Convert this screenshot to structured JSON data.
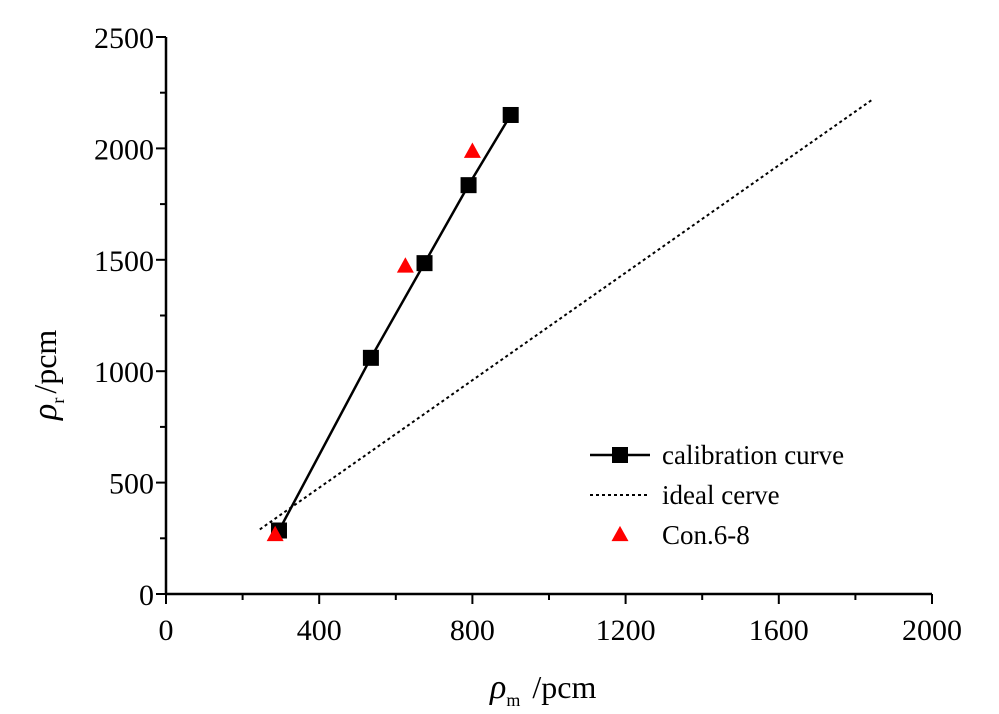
{
  "chart_data": {
    "type": "scatter",
    "x_axis": {
      "symbol": "ρ",
      "subscript": "m",
      "unit": "/pcm",
      "range": [
        0,
        2000
      ],
      "ticks": [
        0,
        400,
        800,
        1200,
        1600,
        2000
      ]
    },
    "y_axis": {
      "symbol": "ρ",
      "subscript": "r",
      "unit": "/pcm",
      "range": [
        0,
        2500
      ],
      "ticks": [
        0,
        500,
        1000,
        1500,
        2000,
        2500
      ]
    },
    "grid": false,
    "legend_position": "bottom-right",
    "series": [
      {
        "name": "calibration curve",
        "kind": "line-with-markers",
        "marker": "square",
        "color": "#000000",
        "points": [
          {
            "x": 295,
            "y": 285
          },
          {
            "x": 535,
            "y": 1060
          },
          {
            "x": 675,
            "y": 1485
          },
          {
            "x": 790,
            "y": 1835
          },
          {
            "x": 900,
            "y": 2150
          }
        ]
      },
      {
        "name": "ideal cerve",
        "kind": "dotted-line",
        "color": "#000000",
        "points": [
          {
            "x": 245,
            "y": 290
          },
          {
            "x": 1845,
            "y": 2220
          }
        ]
      },
      {
        "name": "Con.6-8",
        "kind": "markers",
        "marker": "triangle",
        "color": "#ff0000",
        "points": [
          {
            "x": 285,
            "y": 265
          },
          {
            "x": 625,
            "y": 1470
          },
          {
            "x": 800,
            "y": 1985
          }
        ]
      }
    ]
  }
}
